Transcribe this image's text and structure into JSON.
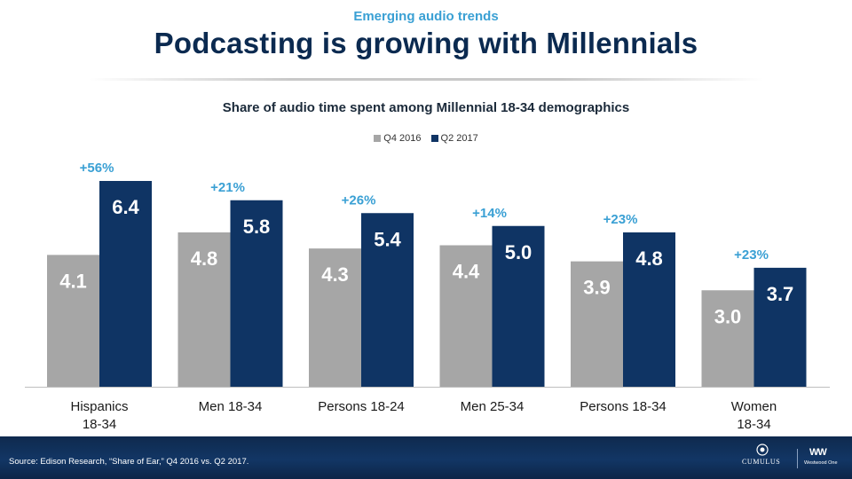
{
  "header": {
    "kicker": "Emerging audio trends",
    "title": "Podcasting is growing with Millennials"
  },
  "chart_data": {
    "type": "bar",
    "title": "Share of audio time spent among Millennial 18-34 demographics",
    "categories": [
      [
        "Hispanics",
        "18-34"
      ],
      [
        "Men 18-34"
      ],
      [
        "Persons 18-24"
      ],
      [
        "Men 25-34"
      ],
      [
        "Persons 18-34"
      ],
      [
        "Women",
        "18-34"
      ]
    ],
    "series": [
      {
        "name": "Q4 2016",
        "color": "#a6a6a6",
        "values": [
          4.1,
          4.8,
          4.3,
          4.4,
          3.9,
          3.0
        ],
        "labels": [
          "4.1",
          "4.8",
          "4.3",
          "4.4",
          "3.9",
          "3.0"
        ]
      },
      {
        "name": "Q2 2017",
        "color": "#0f3464",
        "values": [
          6.4,
          5.8,
          5.4,
          5.0,
          4.8,
          3.7
        ],
        "labels": [
          "6.4",
          "5.8",
          "5.4",
          "5.0",
          "4.8",
          "3.7"
        ]
      }
    ],
    "changes": [
      "+56%",
      "+21%",
      "+26%",
      "+14%",
      "+23%",
      "+23%"
    ],
    "change_color": "#3aa0d4",
    "legend_position": "top-center",
    "grid": false,
    "ylim": [
      0,
      6.6
    ]
  },
  "footer": {
    "source": "Source: Edison Research, “Share of Ear,” Q4 2016 vs. Q2 2017.",
    "brand1": "CUMULUS",
    "brand2": "Westwood One",
    "brand2_mark": "WW"
  }
}
